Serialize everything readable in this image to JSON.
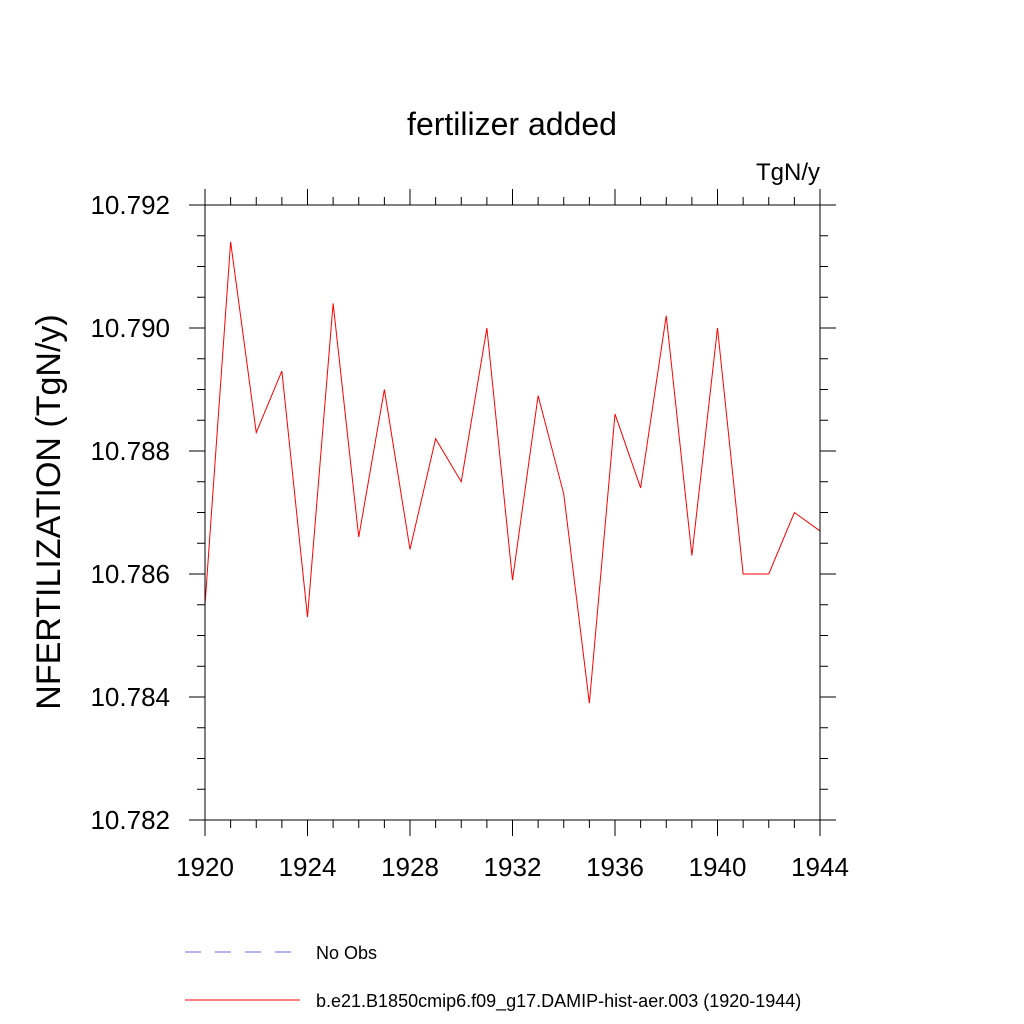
{
  "chart_data": {
    "type": "line",
    "title": "fertilizer added",
    "units": "TgN/y",
    "ylabel": "NFERTILIZATION  (TgN/y)",
    "xlabel": "",
    "xlim": [
      1920,
      1944
    ],
    "ylim": [
      10.782,
      10.792
    ],
    "x_ticks": [
      "1920",
      "1924",
      "1928",
      "1932",
      "1936",
      "1940",
      "1944"
    ],
    "y_ticks": [
      "10.782",
      "10.784",
      "10.786",
      "10.788",
      "10.790",
      "10.792"
    ],
    "grid": false,
    "legend_position": "bottom",
    "legend": [
      {
        "label": "No Obs",
        "color": "#6a6ad8",
        "style": "dashed"
      },
      {
        "label": "b.e21.B1850cmip6.f09_g17.DAMIP-hist-aer.003 (1920-1944)",
        "color": "#ff0000",
        "style": "solid"
      }
    ],
    "series": [
      {
        "name": "b.e21.B1850cmip6.f09_g17.DAMIP-hist-aer.003 (1920-1944)",
        "color": "#ff0000",
        "x": [
          1920,
          1921,
          1922,
          1923,
          1924,
          1925,
          1926,
          1927,
          1928,
          1929,
          1930,
          1931,
          1932,
          1933,
          1934,
          1935,
          1936,
          1937,
          1938,
          1939,
          1940,
          1941,
          1942,
          1943,
          1944
        ],
        "y": [
          10.7855,
          10.7914,
          10.7883,
          10.7893,
          10.7853,
          10.7904,
          10.7866,
          10.789,
          10.7864,
          10.7882,
          10.7875,
          10.79,
          10.7859,
          10.7889,
          10.7873,
          10.7839,
          10.7886,
          10.7874,
          10.7902,
          10.7863,
          10.79,
          10.786,
          10.786,
          10.787,
          10.7867
        ]
      }
    ]
  }
}
